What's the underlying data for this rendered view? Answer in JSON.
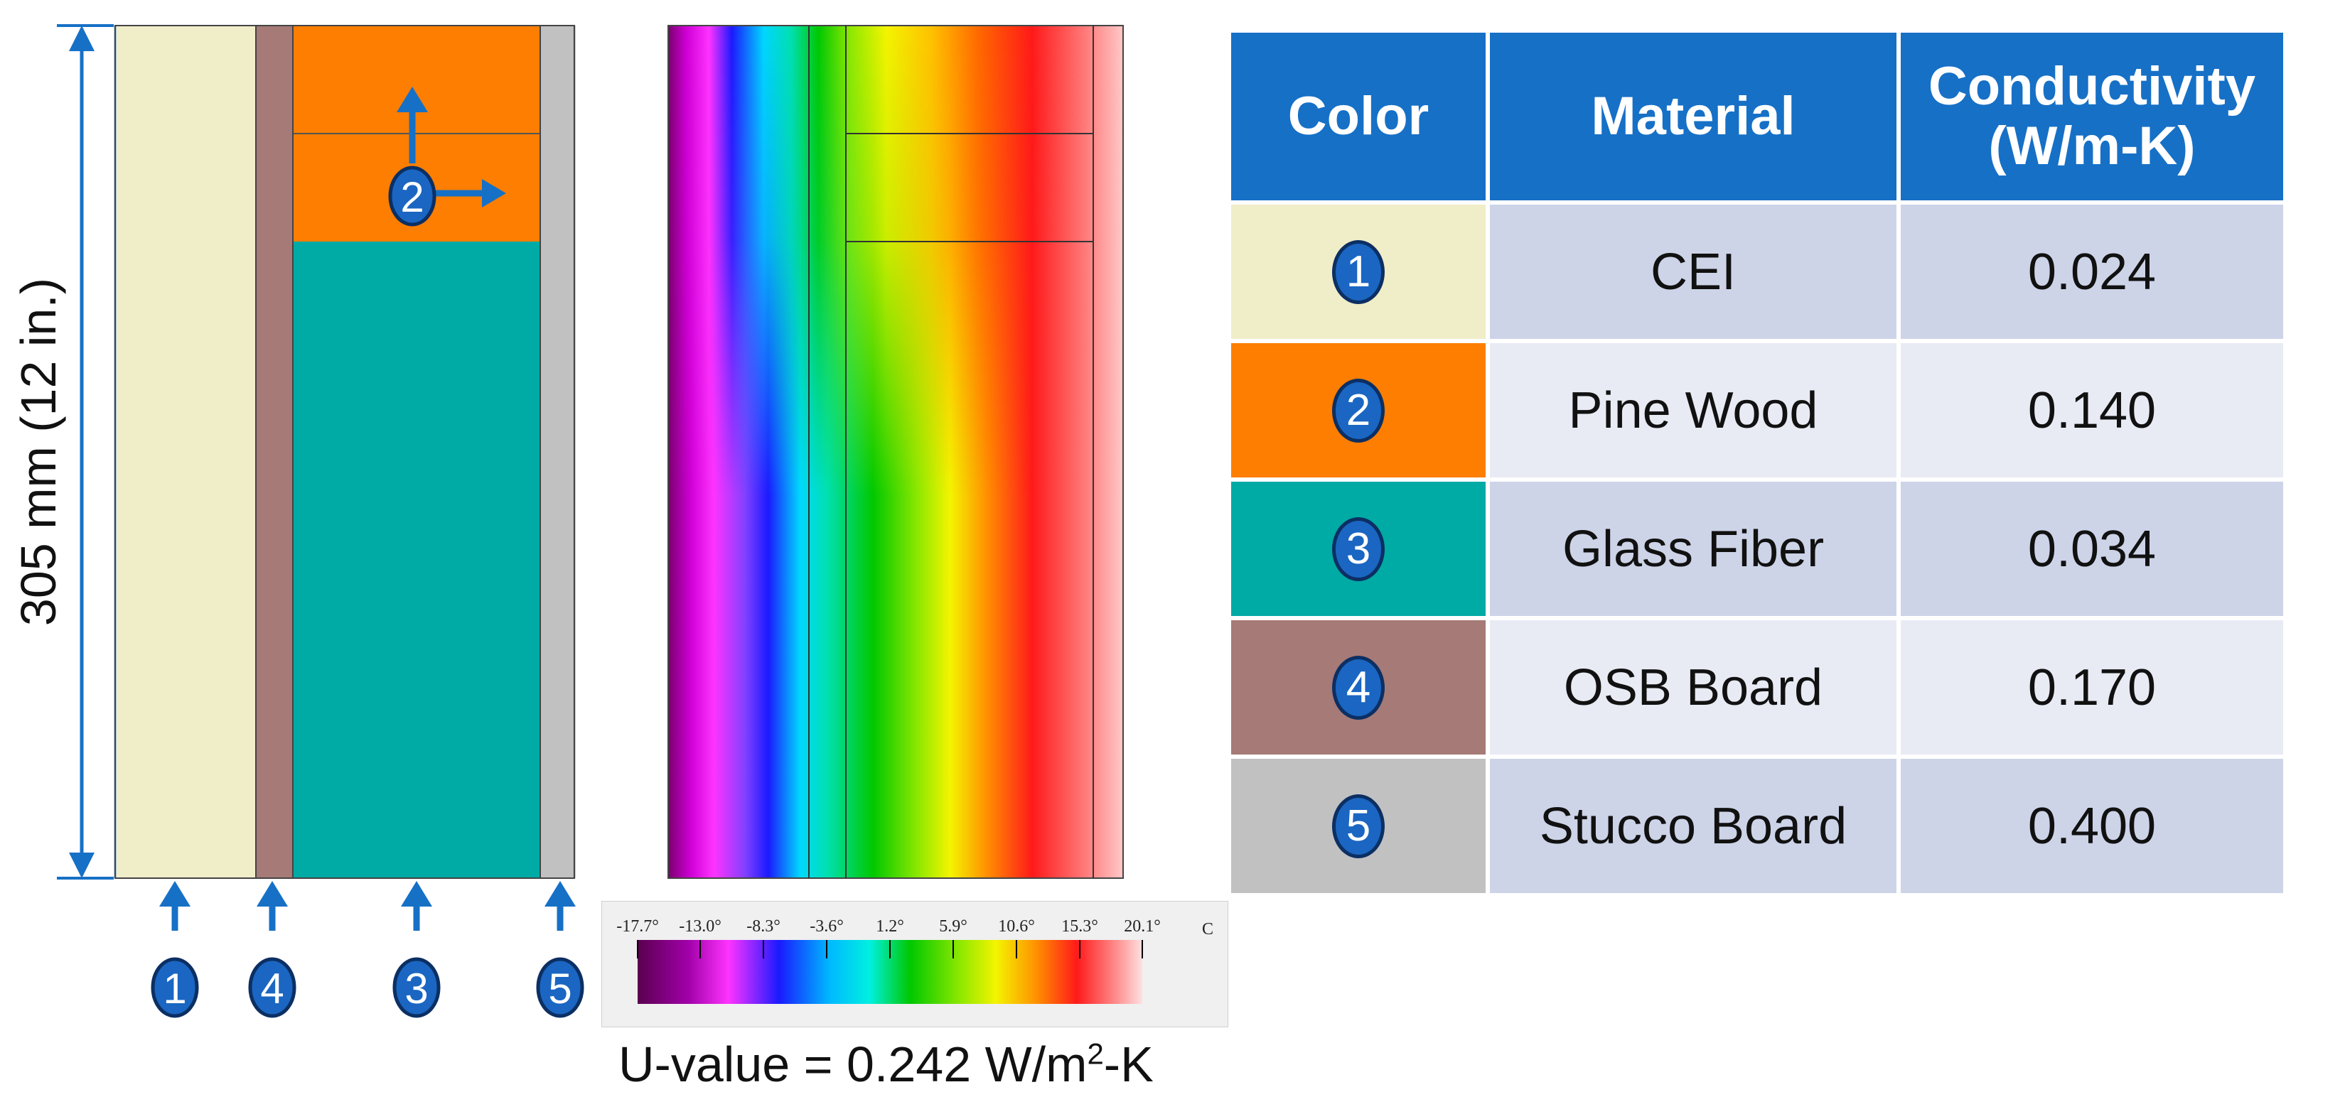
{
  "dimension_label": "305 mm (12 in.)",
  "material_markers": [
    "1",
    "4",
    "3",
    "5"
  ],
  "wood_marker": "2",
  "scale": {
    "ticks": [
      "-17.7°",
      "-13.0°",
      "-8.3°",
      "-3.6°",
      "1.2°",
      "5.9°",
      "10.6°",
      "15.3°",
      "20.1°"
    ],
    "unit": "C"
  },
  "u_value": {
    "prefix": "U-value = 0.242 W/m",
    "sup": "2",
    "suffix": "-K"
  },
  "table": {
    "headers": {
      "color": "Color",
      "material": "Material",
      "conductivity": "Conductivity (W/m-K)"
    },
    "rows": [
      {
        "num": "1",
        "color": "#f0edc9",
        "material": "CEI",
        "conductivity": "0.024"
      },
      {
        "num": "2",
        "color": "#fd7e00",
        "material": "Pine Wood",
        "conductivity": "0.140"
      },
      {
        "num": "3",
        "color": "#00aaa5",
        "material": "Glass Fiber",
        "conductivity": "0.034"
      },
      {
        "num": "4",
        "color": "#a67a76",
        "material": "OSB Board",
        "conductivity": "0.170"
      },
      {
        "num": "5",
        "color": "#c1c1c1",
        "material": "Stucco Board",
        "conductivity": "0.400"
      }
    ],
    "row_fills": [
      "#cdd4e8",
      "#e8ebf4"
    ]
  },
  "colors": {
    "arrow": "#1670c6",
    "badge_fill": "#1a66c2",
    "badge_border": "#0c2f63",
    "header_blue": "#1670c6"
  }
}
